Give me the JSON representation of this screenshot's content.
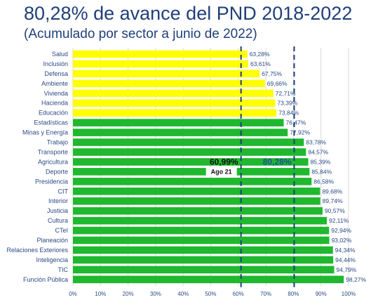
{
  "title": "80,28% de avance del PND 2018-2022",
  "subtitle": "(Acumulado por sector a junio de 2022)",
  "chart_data": {
    "type": "bar",
    "orientation": "horizontal",
    "categories": [
      "Salud",
      "Inclusión",
      "Defensa",
      "Ambiente",
      "Vivienda",
      "Hacienda",
      "Educación",
      "Estadísticas",
      "Minas y Energía",
      "Trabajo",
      "Transporte",
      "Agricultura",
      "Deporte",
      "Presidencia",
      "CIT",
      "Interior",
      "Justicia",
      "Cultura",
      "CTeI",
      "Planeación",
      "Relaciones Exteriores",
      "Inteligencia",
      "TIC",
      "Función Pública"
    ],
    "values": [
      63.28,
      63.61,
      67.75,
      69.66,
      72.71,
      73.39,
      73.84,
      76.47,
      77.92,
      83.78,
      84.57,
      85.39,
      85.84,
      86.58,
      89.68,
      89.74,
      90.57,
      92.11,
      92.94,
      93.02,
      94.34,
      94.44,
      94.79,
      98.27
    ],
    "value_labels": [
      "63,28%",
      "63,61%",
      "67,75%",
      "69,66%",
      "72,71%",
      "73,39%",
      "73,84%",
      "76,47%",
      "77,92%",
      "83,78%",
      "84,57%",
      "85,39%",
      "85,84%",
      "86,58%",
      "89,68%",
      "89,74%",
      "90,57%",
      "92,11%",
      "92,94%",
      "93,02%",
      "94,34%",
      "94,44%",
      "94,79%",
      "98,27%"
    ],
    "bar_colors": [
      "#ffff00",
      "#ffff00",
      "#ffff00",
      "#ffff00",
      "#ffff00",
      "#ffff00",
      "#ffff00",
      "#1fb82e",
      "#1fb82e",
      "#1fb82e",
      "#1fb82e",
      "#1fb82e",
      "#1fb82e",
      "#1fb82e",
      "#1fb82e",
      "#1fb82e",
      "#1fb82e",
      "#1fb82e",
      "#1fb82e",
      "#1fb82e",
      "#1fb82e",
      "#1fb82e",
      "#1fb82e",
      "#1fb82e"
    ],
    "xlim": [
      0,
      100
    ],
    "x_ticks": [
      0,
      10,
      20,
      30,
      40,
      50,
      60,
      70,
      80,
      90,
      100
    ],
    "x_tick_labels": [
      "0%",
      "10%",
      "20%",
      "30%",
      "40%",
      "50%",
      "60%",
      "70%",
      "80%",
      "90%",
      "100%"
    ],
    "grid": true,
    "reference_lines": [
      {
        "value": 60.99,
        "label": "60,99%",
        "sublabel": "Ago 21",
        "color": "#1f3f7a"
      },
      {
        "value": 80.28,
        "label": "80,28%",
        "color": "#1f3f7a"
      }
    ]
  }
}
